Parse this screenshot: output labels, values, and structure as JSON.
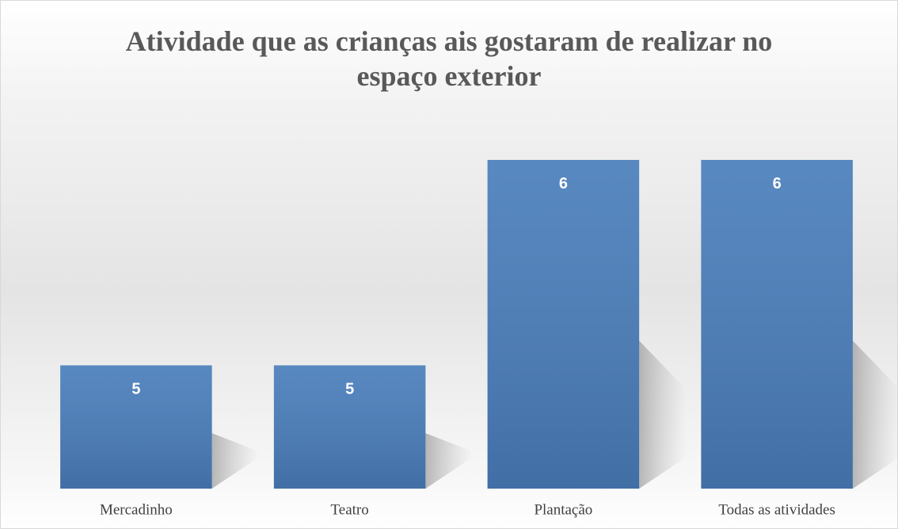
{
  "chart_data": {
    "type": "bar",
    "title": "Atividade que as crianças ais gostaram de realizar no espaço exterior",
    "categories": [
      "Mercadinho",
      "Teatro",
      "Plantação",
      "Todas as atividades"
    ],
    "values": [
      5,
      5,
      6,
      6
    ],
    "color": "#4a7ebb",
    "ylim": [
      4.4,
      6.1
    ]
  }
}
